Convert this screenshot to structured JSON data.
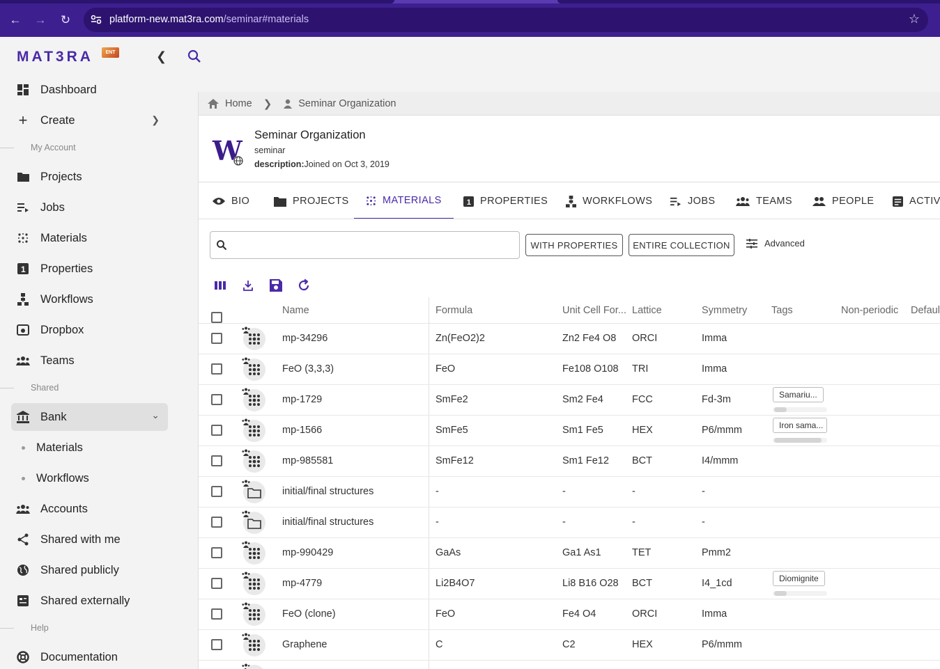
{
  "browser": {
    "url_host": "platform-new.mat3ra.com",
    "url_path": "/seminar#materials"
  },
  "brand": {
    "logo": "MAT3RA",
    "badge": "ENT"
  },
  "sidebar": {
    "items": [
      {
        "label": "Dashboard",
        "icon": "dashboard-icon"
      },
      {
        "label": "Create",
        "icon": "plus-icon"
      },
      {
        "label": "Projects",
        "icon": "folder-icon"
      },
      {
        "label": "Jobs",
        "icon": "jobs-icon"
      },
      {
        "label": "Materials",
        "icon": "materials-icon"
      },
      {
        "label": "Properties",
        "icon": "properties-icon"
      },
      {
        "label": "Workflows",
        "icon": "workflows-icon"
      },
      {
        "label": "Dropbox",
        "icon": "dropbox-icon"
      },
      {
        "label": "Teams",
        "icon": "teams-icon"
      },
      {
        "label": "Bank",
        "icon": "bank-icon"
      },
      {
        "label": "Accounts",
        "icon": "accounts-icon"
      },
      {
        "label": "Shared with me",
        "icon": "share-icon"
      },
      {
        "label": "Shared publicly",
        "icon": "globe-icon"
      },
      {
        "label": "Shared externally",
        "icon": "external-icon"
      },
      {
        "label": "Documentation",
        "icon": "lifebuoy-icon"
      }
    ],
    "sections": {
      "account": "My Account",
      "shared": "Shared",
      "help": "Help"
    },
    "bank_sub": [
      "Materials",
      "Workflows"
    ]
  },
  "breadcrumb": {
    "home": "Home",
    "org": "Seminar Organization"
  },
  "org": {
    "avatar_letter": "W",
    "name": "Seminar Organization",
    "handle": "seminar",
    "desc_label": "description:",
    "desc_value": "Joined on Oct 3, 2019"
  },
  "tabs": [
    "BIO",
    "PROJECTS",
    "MATERIALS",
    "PROPERTIES",
    "WORKFLOWS",
    "JOBS",
    "TEAMS",
    "PEOPLE",
    "ACTIVI"
  ],
  "filters": {
    "search_placeholder": "",
    "with_properties": "WITH PROPERTIES",
    "entire_collection": "ENTIRE COLLECTION",
    "advanced": "Advanced"
  },
  "table": {
    "headers": [
      "Name",
      "Formula",
      "Unit Cell For...",
      "Lattice",
      "Symmetry",
      "Tags",
      "Non-periodic",
      "Default"
    ],
    "rows": [
      {
        "name": "mp-34296",
        "formula": "Zn(FeO2)2",
        "unit": "Zn2 Fe4 O8",
        "lattice": "ORCI",
        "symmetry": "Imma",
        "tag": "",
        "type": "material"
      },
      {
        "name": "FeO (3,3,3)",
        "formula": "FeO",
        "unit": "Fe108 O108",
        "lattice": "TRI",
        "symmetry": "Imma",
        "tag": "",
        "type": "material"
      },
      {
        "name": "mp-1729",
        "formula": "SmFe2",
        "unit": "Sm2 Fe4",
        "lattice": "FCC",
        "symmetry": "Fd-3m",
        "tag": "Samariu...",
        "type": "material"
      },
      {
        "name": "mp-1566",
        "formula": "SmFe5",
        "unit": "Sm1 Fe5",
        "lattice": "HEX",
        "symmetry": "P6/mmm",
        "tag": "Iron sama...",
        "type": "material"
      },
      {
        "name": "mp-985581",
        "formula": "SmFe12",
        "unit": "Sm1 Fe12",
        "lattice": "BCT",
        "symmetry": "I4/mmm",
        "tag": "",
        "type": "material"
      },
      {
        "name": "initial/final structures",
        "formula": "-",
        "unit": "-",
        "lattice": "-",
        "symmetry": "-",
        "tag": "",
        "type": "folder"
      },
      {
        "name": "initial/final structures",
        "formula": "-",
        "unit": "-",
        "lattice": "-",
        "symmetry": "-",
        "tag": "",
        "type": "folder"
      },
      {
        "name": "mp-990429",
        "formula": "GaAs",
        "unit": "Ga1 As1",
        "lattice": "TET",
        "symmetry": "Pmm2",
        "tag": "",
        "type": "material"
      },
      {
        "name": "mp-4779",
        "formula": "Li2B4O7",
        "unit": "Li8 B16 O28",
        "lattice": "BCT",
        "symmetry": "I4_1cd",
        "tag": "Diomignite",
        "type": "material"
      },
      {
        "name": "FeO (clone)",
        "formula": "FeO",
        "unit": "Fe4 O4",
        "lattice": "ORCI",
        "symmetry": "Imma",
        "tag": "",
        "type": "material"
      },
      {
        "name": "Graphene",
        "formula": "C",
        "unit": "C2",
        "lattice": "HEX",
        "symmetry": "P6/mmm",
        "tag": "",
        "type": "material"
      }
    ]
  },
  "colors": {
    "brand": "#4a2aa8",
    "chrome": "#3e1f8f"
  }
}
